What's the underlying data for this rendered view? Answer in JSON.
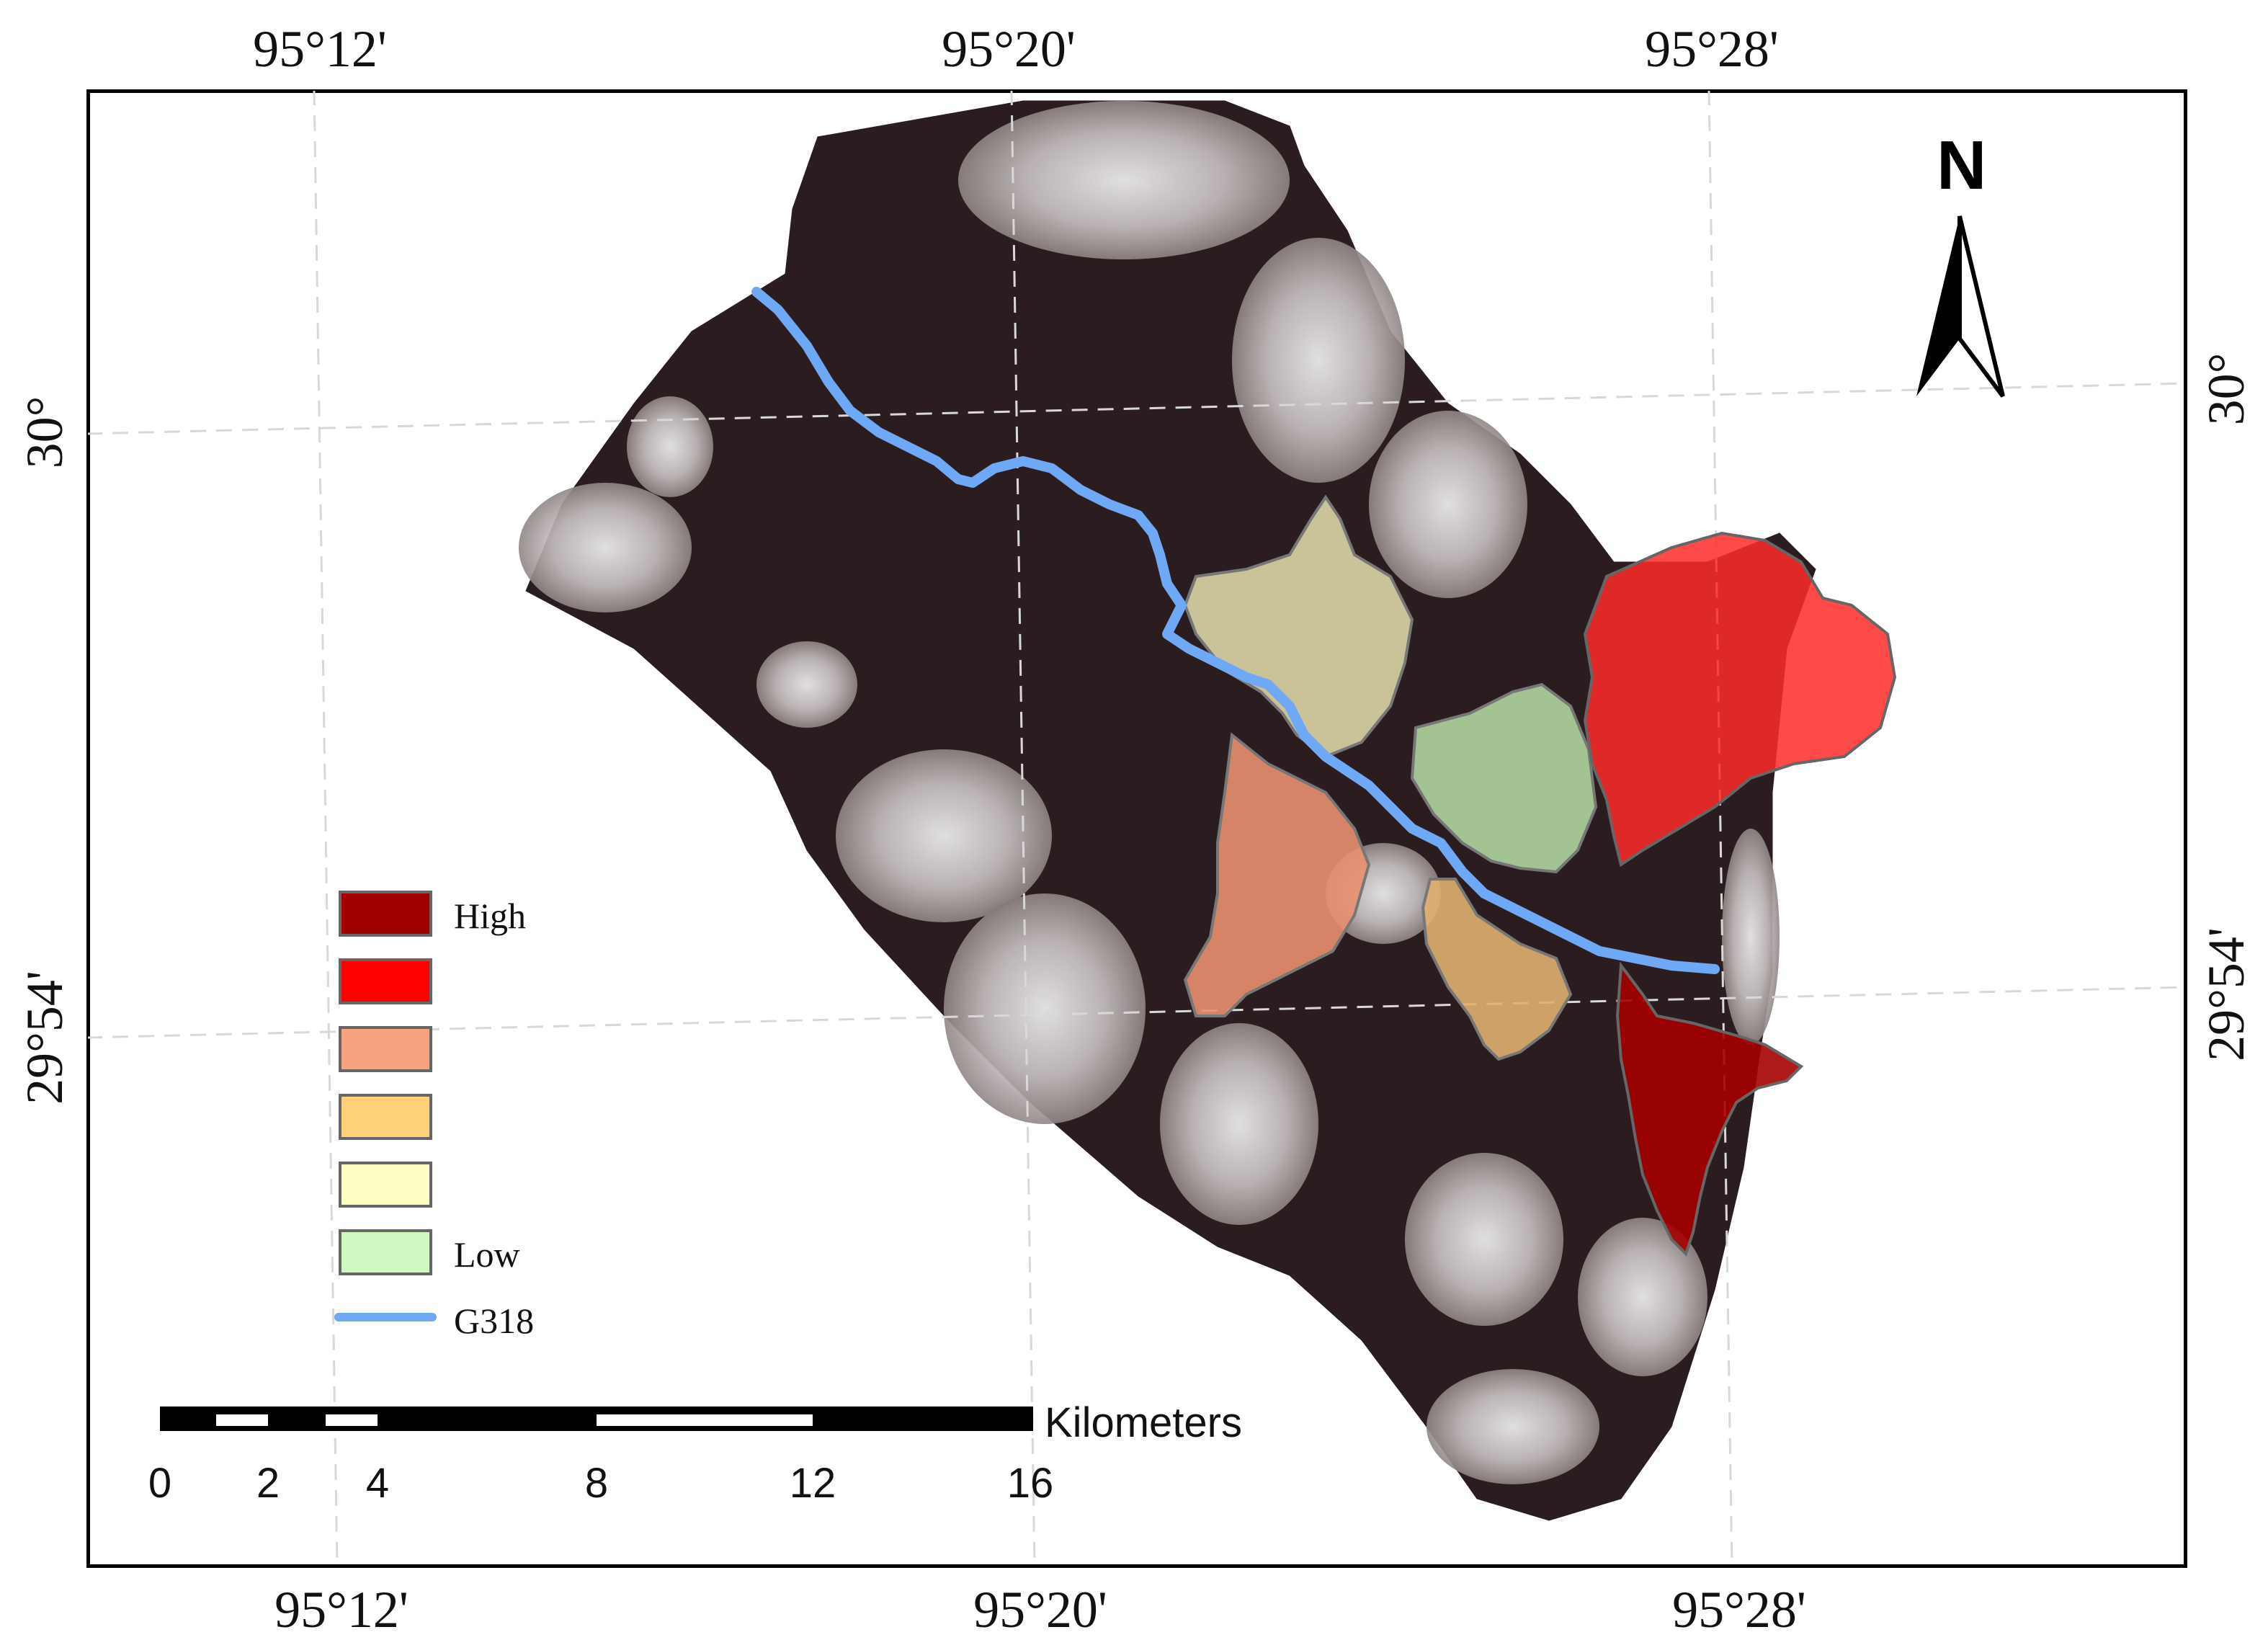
{
  "graticule": {
    "top_labels": [
      "95°12'",
      "95°20'",
      "95°28'"
    ],
    "bottom_labels": [
      "95°12'",
      "95°20'",
      "95°28'"
    ],
    "left_labels": [
      "30°",
      "29°54'"
    ],
    "right_labels": [
      "30°",
      "29°54'"
    ]
  },
  "legend": {
    "items": [
      {
        "label": "High",
        "color": "#a10000"
      },
      {
        "label": "",
        "color": "#ff0000"
      },
      {
        "label": "",
        "color": "#f9a27f"
      },
      {
        "label": "",
        "color": "#ffd07a"
      },
      {
        "label": "",
        "color": "#ffffc4"
      },
      {
        "label": "Low",
        "color": "#cff7c0"
      }
    ],
    "road": {
      "label": "G318",
      "color": "#6fa8f5"
    }
  },
  "scale_bar": {
    "unit": "Kilometers",
    "ticks": [
      "0",
      "2",
      "4",
      "8",
      "12",
      "16"
    ]
  },
  "north_arrow": {
    "letter": "N"
  },
  "zone_colors": {
    "very_high": "#a50000",
    "high": "#ff2a2a",
    "moderate": "#e89070",
    "low_moderate": "#e0b070",
    "low": "#e6e0b0",
    "very_low": "#b8e0a8"
  }
}
